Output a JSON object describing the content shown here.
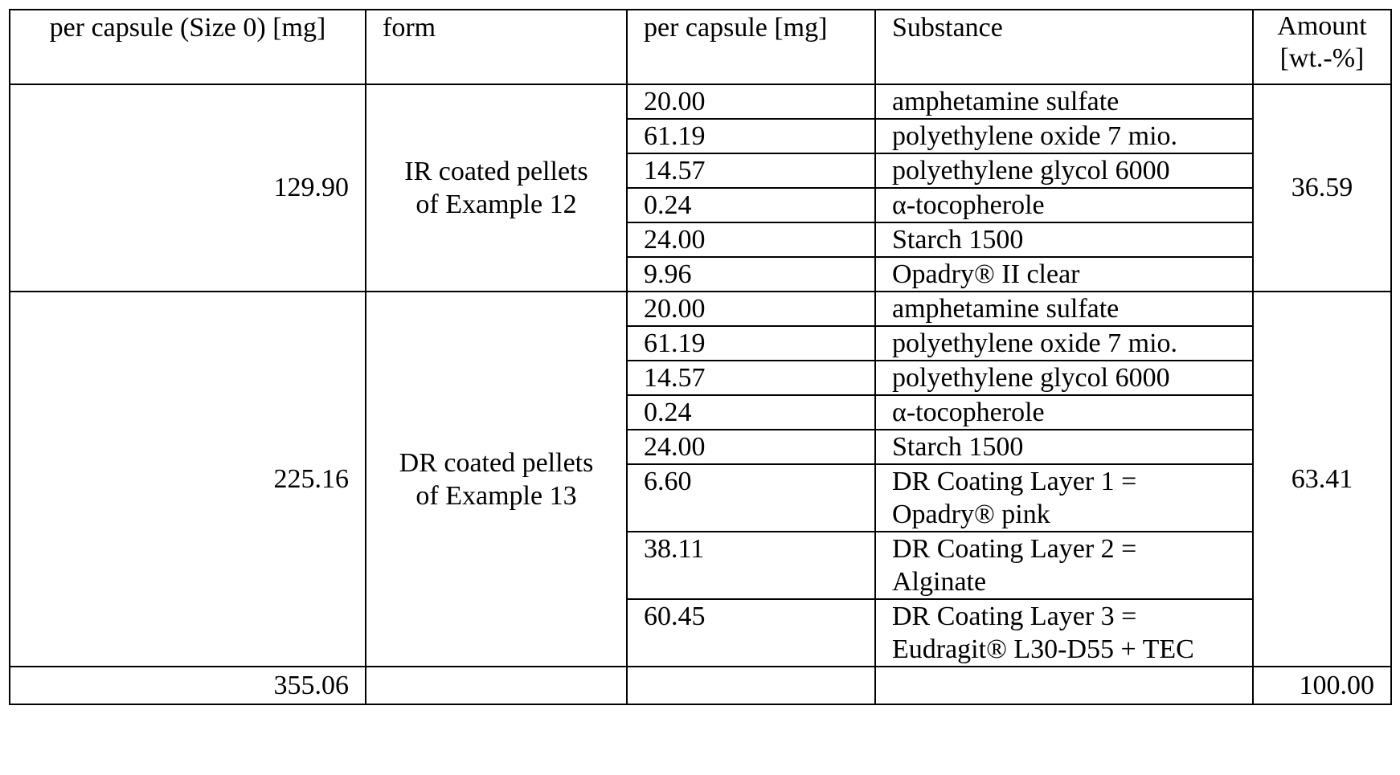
{
  "table": {
    "header": [
      "per capsule (Size 0) [mg]",
      "form",
      "per capsule [mg]",
      "Substance",
      [
        "Amount",
        "[wt.-%]"
      ]
    ],
    "groups": [
      {
        "total_mg": "129.90",
        "form": [
          "IR coated pellets",
          "of Example 12"
        ],
        "amount": "36.59",
        "rows": [
          {
            "mg": "20.00",
            "substance": [
              "amphetamine sulfate"
            ]
          },
          {
            "mg": "61.19",
            "substance": [
              "polyethylene oxide 7 mio."
            ]
          },
          {
            "mg": "14.57",
            "substance": [
              "polyethylene glycol 6000"
            ]
          },
          {
            "mg": "0.24",
            "substance": [
              "α-tocopherole"
            ]
          },
          {
            "mg": "24.00",
            "substance": [
              "Starch 1500"
            ]
          },
          {
            "mg": "9.96",
            "substance": [
              "Opadry® II clear"
            ]
          }
        ]
      },
      {
        "total_mg": "225.16",
        "form": [
          "DR coated pellets",
          "of Example 13"
        ],
        "amount": "63.41",
        "rows": [
          {
            "mg": "20.00",
            "substance": [
              "amphetamine sulfate"
            ]
          },
          {
            "mg": "61.19",
            "substance": [
              "polyethylene oxide 7 mio."
            ]
          },
          {
            "mg": "14.57",
            "substance": [
              "polyethylene glycol 6000"
            ]
          },
          {
            "mg": "0.24",
            "substance": [
              "α-tocopherole"
            ]
          },
          {
            "mg": "24.00",
            "substance": [
              "Starch 1500"
            ]
          },
          {
            "mg": "6.60",
            "substance": [
              "DR Coating Layer 1 =",
              "Opadry® pink"
            ]
          },
          {
            "mg": "38.11",
            "substance": [
              "DR Coating Layer 2 =",
              "Alginate"
            ]
          },
          {
            "mg": "60.45",
            "substance": [
              "DR Coating Layer 3 =",
              "Eudragit® L30-D55 + TEC"
            ]
          }
        ]
      }
    ],
    "total": {
      "mg": "355.06",
      "amount": "100.00"
    }
  }
}
